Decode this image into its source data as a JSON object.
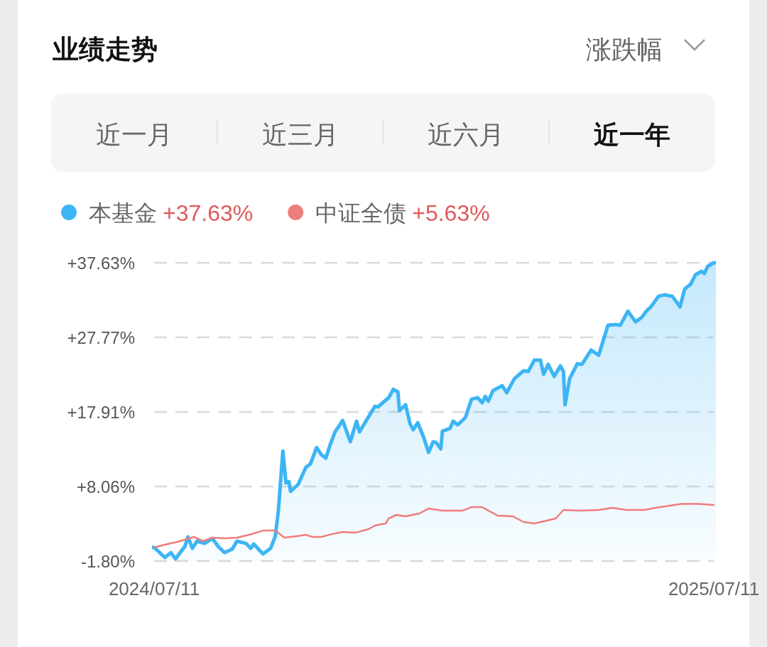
{
  "chart_data": {
    "type": "area",
    "title": "业绩走势",
    "annotations": [
      "涨跌幅",
      "近一月",
      "近三月",
      "近六月",
      "近一年",
      "+37.63%",
      "+5.63%"
    ],
    "series": [
      {
        "name": "本基金",
        "color": "#3db5f5",
        "x": [
          "2024-07-11",
          "2024-07-18",
          "2024-07-22",
          "2024-07-25",
          "2024-07-29",
          "2024-07-31",
          "2024-08-02",
          "2024-08-05",
          "2024-08-08",
          "2024-08-13",
          "2024-08-18",
          "2024-08-22",
          "2024-08-26",
          "2024-08-31",
          "2024-09-03",
          "2024-09-09",
          "2024-09-12",
          "2024-09-14",
          "2024-09-20",
          "2024-09-25",
          "2024-09-28",
          "2024-09-30",
          "2024-10-03",
          "2024-10-05",
          "2024-10-07",
          "2024-10-08",
          "2024-10-13",
          "2024-10-18",
          "2024-10-21",
          "2024-10-25",
          "2024-10-28",
          "2024-10-31",
          "2024-11-03",
          "2024-11-06",
          "2024-11-11",
          "2024-11-16",
          "2024-11-20",
          "2024-11-22",
          "2024-11-25",
          "2024-12-02",
          "2024-12-04",
          "2024-12-11",
          "2024-12-14",
          "2024-12-17",
          "2024-12-18",
          "2024-12-22",
          "2024-12-25",
          "2024-12-27",
          "2024-12-30",
          "2025-01-03",
          "2025-01-06",
          "2025-01-09",
          "2025-01-11",
          "2025-01-14",
          "2025-01-15",
          "2025-01-20",
          "2025-01-22",
          "2025-01-25",
          "2025-01-30",
          "2025-02-03",
          "2025-02-07",
          "2025-02-10",
          "2025-02-12",
          "2025-02-14",
          "2025-02-17",
          "2025-02-23",
          "2025-02-26",
          "2025-03-03",
          "2025-03-09",
          "2025-03-12",
          "2025-03-16",
          "2025-03-20",
          "2025-03-22",
          "2025-03-25",
          "2025-03-29",
          "2025-04-02",
          "2025-04-04",
          "2025-04-05",
          "2025-04-08",
          "2025-04-13",
          "2025-04-16",
          "2025-04-22",
          "2025-04-27",
          "2025-05-03",
          "2025-05-08",
          "2025-05-11",
          "2025-05-16",
          "2025-05-21",
          "2025-05-25",
          "2025-05-28",
          "2025-05-31",
          "2025-06-05",
          "2025-06-09",
          "2025-06-14",
          "2025-06-19",
          "2025-06-22",
          "2025-06-26",
          "2025-06-29",
          "2025-07-03",
          "2025-07-05",
          "2025-07-07",
          "2025-07-11"
        ],
        "values": [
          0.0,
          -1.33,
          -0.68,
          -1.52,
          -0.39,
          0.08,
          1.39,
          -0.11,
          0.83,
          0.54,
          1.2,
          0.08,
          -0.68,
          -0.21,
          0.83,
          0.54,
          -0.11,
          0.45,
          -0.86,
          -0.11,
          1.48,
          4.77,
          12.75,
          8.52,
          8.71,
          7.4,
          8.34,
          10.59,
          11.06,
          13.22,
          12.28,
          11.81,
          13.69,
          15.28,
          16.78,
          13.97,
          16.69,
          15.28,
          16.31,
          18.66,
          18.57,
          19.79,
          20.91,
          20.54,
          18.1,
          18.85,
          16.31,
          15.56,
          16.5,
          14.44,
          12.56,
          13.97,
          13.87,
          13.03,
          15.37,
          15.75,
          16.69,
          16.22,
          17.16,
          19.6,
          19.79,
          19.13,
          19.97,
          19.32,
          20.73,
          21.38,
          20.45,
          22.32,
          23.36,
          23.26,
          24.76,
          24.76,
          22.89,
          24.2,
          22.6,
          24.01,
          23.26,
          18.85,
          22.32,
          24.29,
          24.2,
          26.08,
          25.42,
          29.36,
          29.46,
          29.36,
          31.24,
          29.83,
          30.4,
          31.24,
          31.81,
          33.21,
          33.4,
          33.21,
          31.81,
          34.15,
          34.81,
          36.03,
          36.5,
          36.21,
          37.15,
          37.63
        ]
      },
      {
        "name": "中证全债",
        "type": "line",
        "color": "#ee7d7d",
        "x": [
          "2024-07-11",
          "2024-07-18",
          "2024-07-28",
          "2024-08-06",
          "2024-08-12",
          "2024-08-18",
          "2024-08-26",
          "2024-09-03",
          "2024-09-11",
          "2024-09-20",
          "2024-09-28",
          "2024-10-04",
          "2024-10-12",
          "2024-10-18",
          "2024-10-22",
          "2024-10-28",
          "2024-11-04",
          "2024-11-11",
          "2024-11-19",
          "2024-11-28",
          "2024-12-02",
          "2024-12-09",
          "2024-12-11",
          "2024-12-16",
          "2024-12-22",
          "2024-12-31",
          "2025-01-06",
          "2025-01-15",
          "2025-01-28",
          "2025-02-03",
          "2025-02-10",
          "2025-02-20",
          "2025-03-02",
          "2025-03-09",
          "2025-03-16",
          "2025-03-30",
          "2025-04-04",
          "2025-04-15",
          "2025-04-27",
          "2025-05-06",
          "2025-05-15",
          "2025-05-27",
          "2025-06-03",
          "2025-06-20",
          "2025-07-01",
          "2025-07-11"
        ],
        "values": [
          0.0,
          0.36,
          0.83,
          1.39,
          0.83,
          1.3,
          1.2,
          1.3,
          1.67,
          2.23,
          2.23,
          1.3,
          1.48,
          1.67,
          1.39,
          1.39,
          1.76,
          2.05,
          1.95,
          2.42,
          2.89,
          3.17,
          3.83,
          4.3,
          4.11,
          4.49,
          5.14,
          4.86,
          4.86,
          5.33,
          5.33,
          4.21,
          4.11,
          3.36,
          3.17,
          3.83,
          4.96,
          4.86,
          4.96,
          5.24,
          4.96,
          4.96,
          5.24,
          5.75,
          5.75,
          5.63
        ]
      }
    ],
    "xlim": [
      "2024-07-11",
      "2025-07-11"
    ],
    "xticks": [
      {
        "value": "2024-07-11",
        "label": "2024/07/11"
      },
      {
        "value": "2025-07-11",
        "label": "2025/07/11"
      }
    ],
    "ylim": [
      -1.8,
      37.63
    ],
    "yticks": [
      {
        "value": -1.8,
        "label": "-1.80%"
      },
      {
        "value": 8.06,
        "label": "+8.06%"
      },
      {
        "value": 17.91,
        "label": "+17.91%"
      },
      {
        "value": 27.77,
        "label": "+27.77%"
      },
      {
        "value": 37.63,
        "label": "+37.63%"
      }
    ],
    "grid": "y",
    "legend": "top left",
    "marker": "none",
    "line_style": "solid"
  }
}
